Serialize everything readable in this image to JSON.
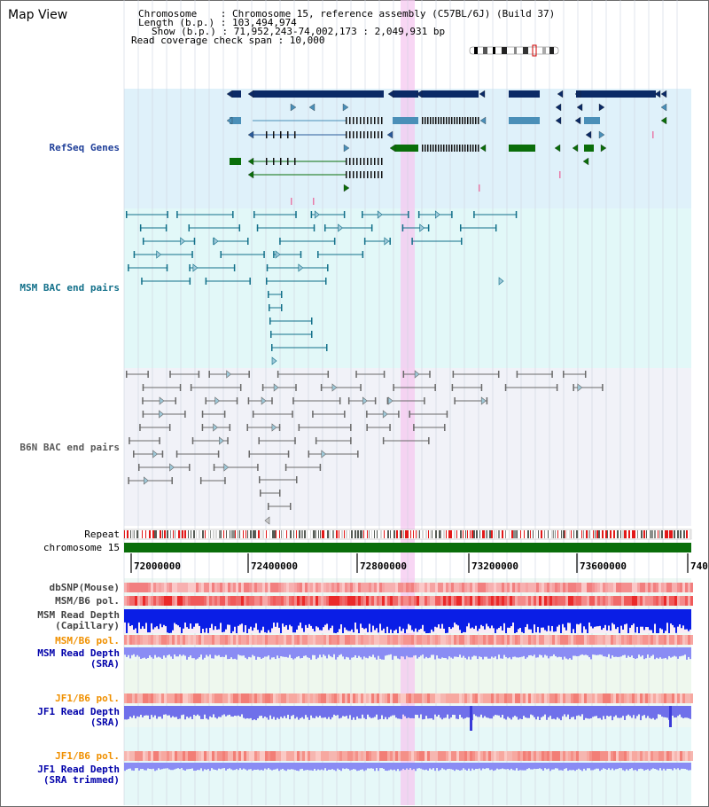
{
  "title": "Map View",
  "info": {
    "line1": "Chromosome    : Chromosome 15, reference assembly (C57BL/6J) (Build 37)",
    "line2": "Length (b.p.) : 103,494,974",
    "line3": "Show (b.p.) : 71,952,243-74,002,173 : 2,049,931 bp",
    "line4": "Read coverage check span : 10,000"
  },
  "tracks": [
    {
      "id": "refseq",
      "label": "RefSeq Genes",
      "color": "#1f3f99"
    },
    {
      "id": "msm_bac",
      "label": "MSM BAC end pairs",
      "color": "#13708a"
    },
    {
      "id": "b6n_bac",
      "label": "B6N BAC end pairs",
      "color": "#5a5a5a"
    },
    {
      "id": "repeat",
      "label": "Repeat",
      "color": "#000000"
    },
    {
      "id": "chromosome",
      "label": "chromosome 15",
      "color": "#000000"
    },
    {
      "id": "dbsnp",
      "label": "dbSNP(Mouse)",
      "color": "#444444"
    },
    {
      "id": "msm_b6_pol",
      "label": "MSM/B6 pol.",
      "color": "#444444"
    },
    {
      "id": "msm_depth_cap",
      "label": "MSM Read Depth\n(Capillary)",
      "color": "#444444"
    },
    {
      "id": "msm_b6_pol2",
      "label": "MSM/B6 pol.",
      "color": "#f09000"
    },
    {
      "id": "msm_depth_sra",
      "label": "MSM Read Depth\n(SRA)",
      "color": "#0000aa"
    },
    {
      "id": "jf1_b6_pol",
      "label": "JF1/B6 pol.",
      "color": "#f09000"
    },
    {
      "id": "jf1_depth_sra",
      "label": "JF1 Read Depth\n(SRA)",
      "color": "#0000aa"
    },
    {
      "id": "jf1_b6_pol2",
      "label": "JF1/B6 pol.",
      "color": "#f09000"
    },
    {
      "id": "jf1_depth_trim",
      "label": "JF1 Read Depth\n(SRA trimmed)",
      "color": "#0000aa"
    }
  ],
  "axis_ticks": [
    "72000000",
    "72400000",
    "72800000",
    "73200000",
    "73600000",
    "740"
  ],
  "colors": {
    "refseq_bg": "#dff1fa",
    "msm_bg": "#e2f8f8",
    "b6n_bg": "#f1f2f8",
    "chromosome_bar": "#0a6e0a",
    "highlight": "#f5c8f0",
    "gene_dark": "#0b2a66",
    "gene_mid": "#4a8fb8",
    "gene_green": "#0a6e0a",
    "msm_line": "#13708a",
    "b6n_line": "#6a6a6a"
  }
}
